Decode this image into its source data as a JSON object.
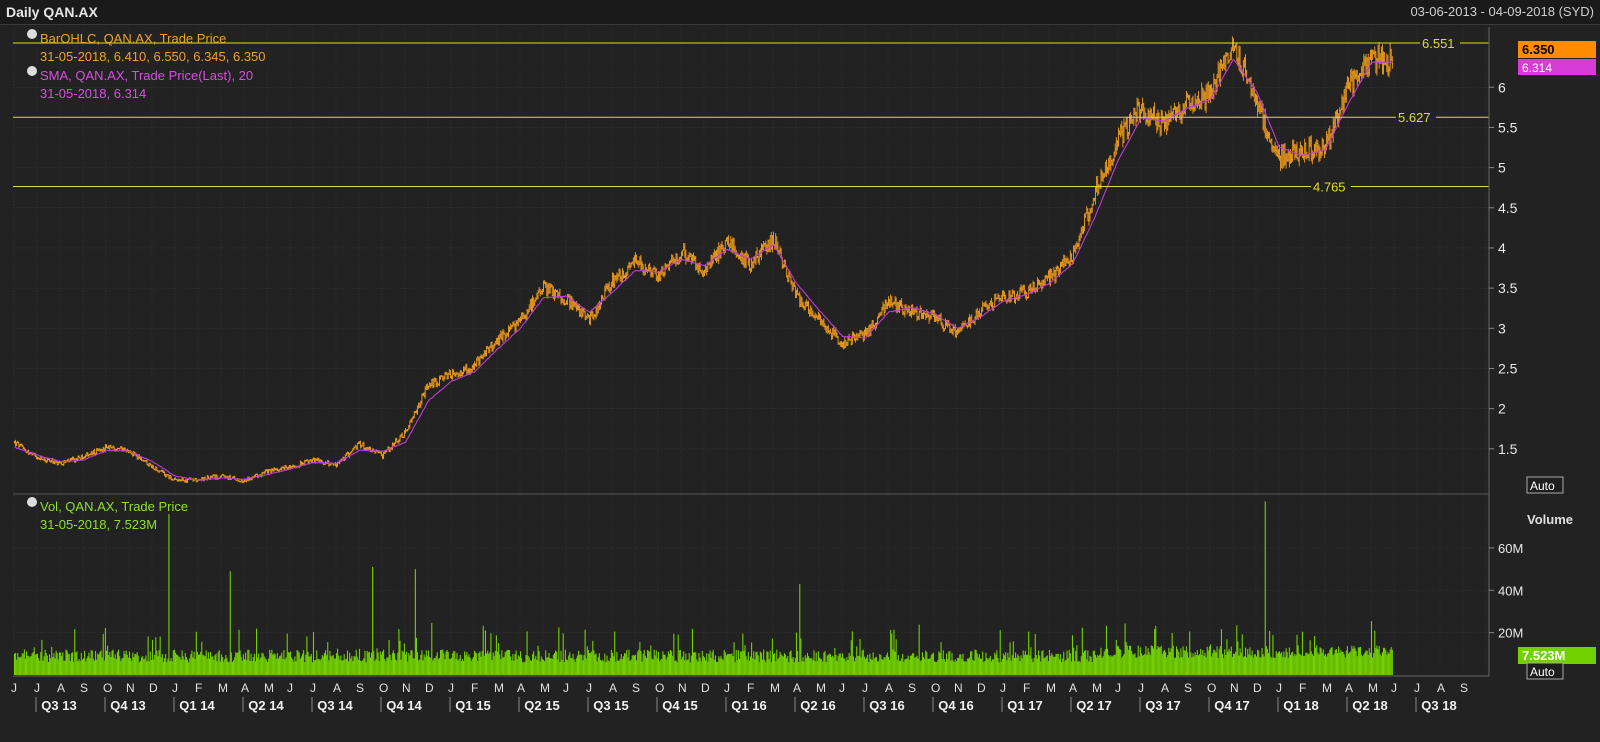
{
  "header": {
    "title": "Daily QAN.AX",
    "date_range": "03-06-2013 - 04-09-2018 (SYD)"
  },
  "legend": {
    "ohlc_name": "BarOHLC, QAN.AX, Trade Price",
    "ohlc_values": "31-05-2018, 6.410, 6.550, 6.345, 6.350",
    "sma_name": "SMA, QAN.AX, Trade Price(Last),  20",
    "sma_values": "31-05-2018, 6.314",
    "vol_name": "Vol, QAN.AX, Trade Price",
    "vol_values": "31-05-2018, 7.523M"
  },
  "buttons": {
    "auto_price": "Auto",
    "auto_volume": "Auto"
  },
  "colors": {
    "background": "#222222",
    "grid": "#3a3a3a",
    "price_bars": "#f7a01c",
    "sma": "#c23bd4",
    "volume": "#72d100",
    "hline": "#dede2c",
    "legend_ohlc": "#f0a030",
    "legend_sma": "#d84ee0",
    "legend_vol": "#8ee02a"
  },
  "chart_data": [
    {
      "type": "ohlc",
      "ylim": [
        0.95,
        6.75
      ],
      "y_ticks": [
        1.5,
        2,
        2.5,
        3,
        3.5,
        4,
        4.5,
        5,
        5.5,
        6
      ],
      "y_tick_labels": [
        "1.5",
        "2",
        "2.5",
        "3",
        "3.5",
        "4",
        "4.5",
        "5",
        "5.5",
        "6"
      ],
      "grid": true,
      "last_price_label": "6.350",
      "last_sma_label": "6.314",
      "horizontal_lines": [
        {
          "value": 6.551,
          "label": "6.551"
        },
        {
          "value": 5.627,
          "label": "5.627"
        },
        {
          "value": 4.765,
          "label": "4.765"
        }
      ],
      "series": [
        {
          "name": "BarOHLC, QAN.AX, Trade Price",
          "dates": [
            "2013-06",
            "2013-07",
            "2013-08",
            "2013-09",
            "2013-10",
            "2013-11",
            "2013-12",
            "2014-01",
            "2014-02",
            "2014-03",
            "2014-04",
            "2014-05",
            "2014-06",
            "2014-07",
            "2014-08",
            "2014-09",
            "2014-10",
            "2014-11",
            "2014-12",
            "2015-01",
            "2015-02",
            "2015-03",
            "2015-04",
            "2015-05",
            "2015-06",
            "2015-07",
            "2015-08",
            "2015-09",
            "2015-10",
            "2015-11",
            "2015-12",
            "2016-01",
            "2016-02",
            "2016-03",
            "2016-04",
            "2016-05",
            "2016-06",
            "2016-07",
            "2016-08",
            "2016-09",
            "2016-10",
            "2016-11",
            "2016-12",
            "2017-01",
            "2017-02",
            "2017-03",
            "2017-04",
            "2017-05",
            "2017-06",
            "2017-07",
            "2017-08",
            "2017-09",
            "2017-10",
            "2017-11",
            "2017-12",
            "2018-01",
            "2018-02",
            "2018-03",
            "2018-04",
            "2018-05"
          ],
          "close": [
            1.58,
            1.38,
            1.32,
            1.4,
            1.52,
            1.46,
            1.28,
            1.1,
            1.12,
            1.16,
            1.1,
            1.22,
            1.28,
            1.36,
            1.3,
            1.56,
            1.42,
            1.7,
            2.3,
            2.42,
            2.52,
            2.86,
            3.1,
            3.52,
            3.35,
            3.1,
            3.58,
            3.82,
            3.65,
            3.95,
            3.72,
            4.08,
            3.8,
            4.12,
            3.4,
            3.1,
            2.82,
            2.92,
            3.32,
            3.22,
            3.15,
            2.92,
            3.22,
            3.4,
            3.45,
            3.62,
            3.88,
            4.7,
            5.35,
            5.75,
            5.52,
            5.82,
            5.9,
            6.55,
            5.8,
            5.1,
            5.22,
            5.25,
            6.0,
            6.35
          ]
        },
        {
          "name": "SMA, QAN.AX, Trade Price(Last),  20",
          "dates": [
            "2013-06",
            "2013-07",
            "2013-08",
            "2013-09",
            "2013-10",
            "2013-11",
            "2013-12",
            "2014-01",
            "2014-02",
            "2014-03",
            "2014-04",
            "2014-05",
            "2014-06",
            "2014-07",
            "2014-08",
            "2014-09",
            "2014-10",
            "2014-11",
            "2014-12",
            "2015-01",
            "2015-02",
            "2015-03",
            "2015-04",
            "2015-05",
            "2015-06",
            "2015-07",
            "2015-08",
            "2015-09",
            "2015-10",
            "2015-11",
            "2015-12",
            "2016-01",
            "2016-02",
            "2016-03",
            "2016-04",
            "2016-05",
            "2016-06",
            "2016-07",
            "2016-08",
            "2016-09",
            "2016-10",
            "2016-11",
            "2016-12",
            "2017-01",
            "2017-02",
            "2017-03",
            "2017-04",
            "2017-05",
            "2017-06",
            "2017-07",
            "2017-08",
            "2017-09",
            "2017-10",
            "2017-11",
            "2017-12",
            "2018-01",
            "2018-02",
            "2018-03",
            "2018-04",
            "2018-05"
          ],
          "close": [
            1.52,
            1.42,
            1.34,
            1.36,
            1.48,
            1.47,
            1.34,
            1.16,
            1.11,
            1.14,
            1.12,
            1.18,
            1.25,
            1.33,
            1.32,
            1.48,
            1.47,
            1.58,
            2.1,
            2.34,
            2.46,
            2.74,
            3.0,
            3.38,
            3.4,
            3.2,
            3.45,
            3.72,
            3.7,
            3.86,
            3.78,
            3.98,
            3.86,
            4.04,
            3.56,
            3.22,
            2.9,
            2.88,
            3.2,
            3.26,
            3.18,
            3.0,
            3.14,
            3.34,
            3.42,
            3.56,
            3.8,
            4.4,
            5.1,
            5.62,
            5.58,
            5.74,
            5.85,
            6.35,
            5.95,
            5.25,
            5.15,
            5.22,
            5.8,
            6.31
          ]
        }
      ]
    },
    {
      "type": "bar",
      "ylabel": "Volume",
      "ylim": [
        0,
        85
      ],
      "y_ticks": [
        20,
        40,
        60
      ],
      "y_tick_labels": [
        "20M",
        "40M",
        "60M"
      ],
      "grid": true,
      "last_volume_label": "7.523M",
      "series": [
        {
          "name": "Vol, QAN.AX, Trade Price",
          "unit": "M",
          "spikes": [
            {
              "date": "2013-12",
              "value": 76
            },
            {
              "date": "2014-03",
              "value": 49
            },
            {
              "date": "2014-09",
              "value": 51
            },
            {
              "date": "2014-11",
              "value": 50
            },
            {
              "date": "2016-04",
              "value": 43
            },
            {
              "date": "2017-12",
              "value": 82
            }
          ],
          "last_value": 7.523
        }
      ]
    }
  ],
  "x_axis": {
    "month_letters": [
      "J",
      "J",
      "A",
      "S",
      "O",
      "N",
      "D",
      "J",
      "F",
      "M",
      "A",
      "M",
      "J",
      "J",
      "A",
      "S",
      "O",
      "N",
      "D",
      "J",
      "F",
      "M",
      "A",
      "M",
      "J",
      "J",
      "A",
      "S",
      "O",
      "N",
      "D",
      "J",
      "F",
      "M",
      "A",
      "M",
      "J",
      "J",
      "A",
      "S",
      "O",
      "N",
      "D",
      "J",
      "F",
      "M",
      "A",
      "M",
      "J",
      "J",
      "A",
      "S",
      "O",
      "N",
      "D",
      "J",
      "F",
      "M",
      "A",
      "M",
      "J",
      "J",
      "A",
      "S"
    ],
    "quarters": [
      "Q3 13",
      "Q4 13",
      "Q1 14",
      "Q2 14",
      "Q3 14",
      "Q4 14",
      "Q1 15",
      "Q2 15",
      "Q3 15",
      "Q4 15",
      "Q1 16",
      "Q2 16",
      "Q3 16",
      "Q4 16",
      "Q1 17",
      "Q2 17",
      "Q3 17",
      "Q4 17",
      "Q1 18",
      "Q2 18",
      "Q3 18"
    ]
  }
}
